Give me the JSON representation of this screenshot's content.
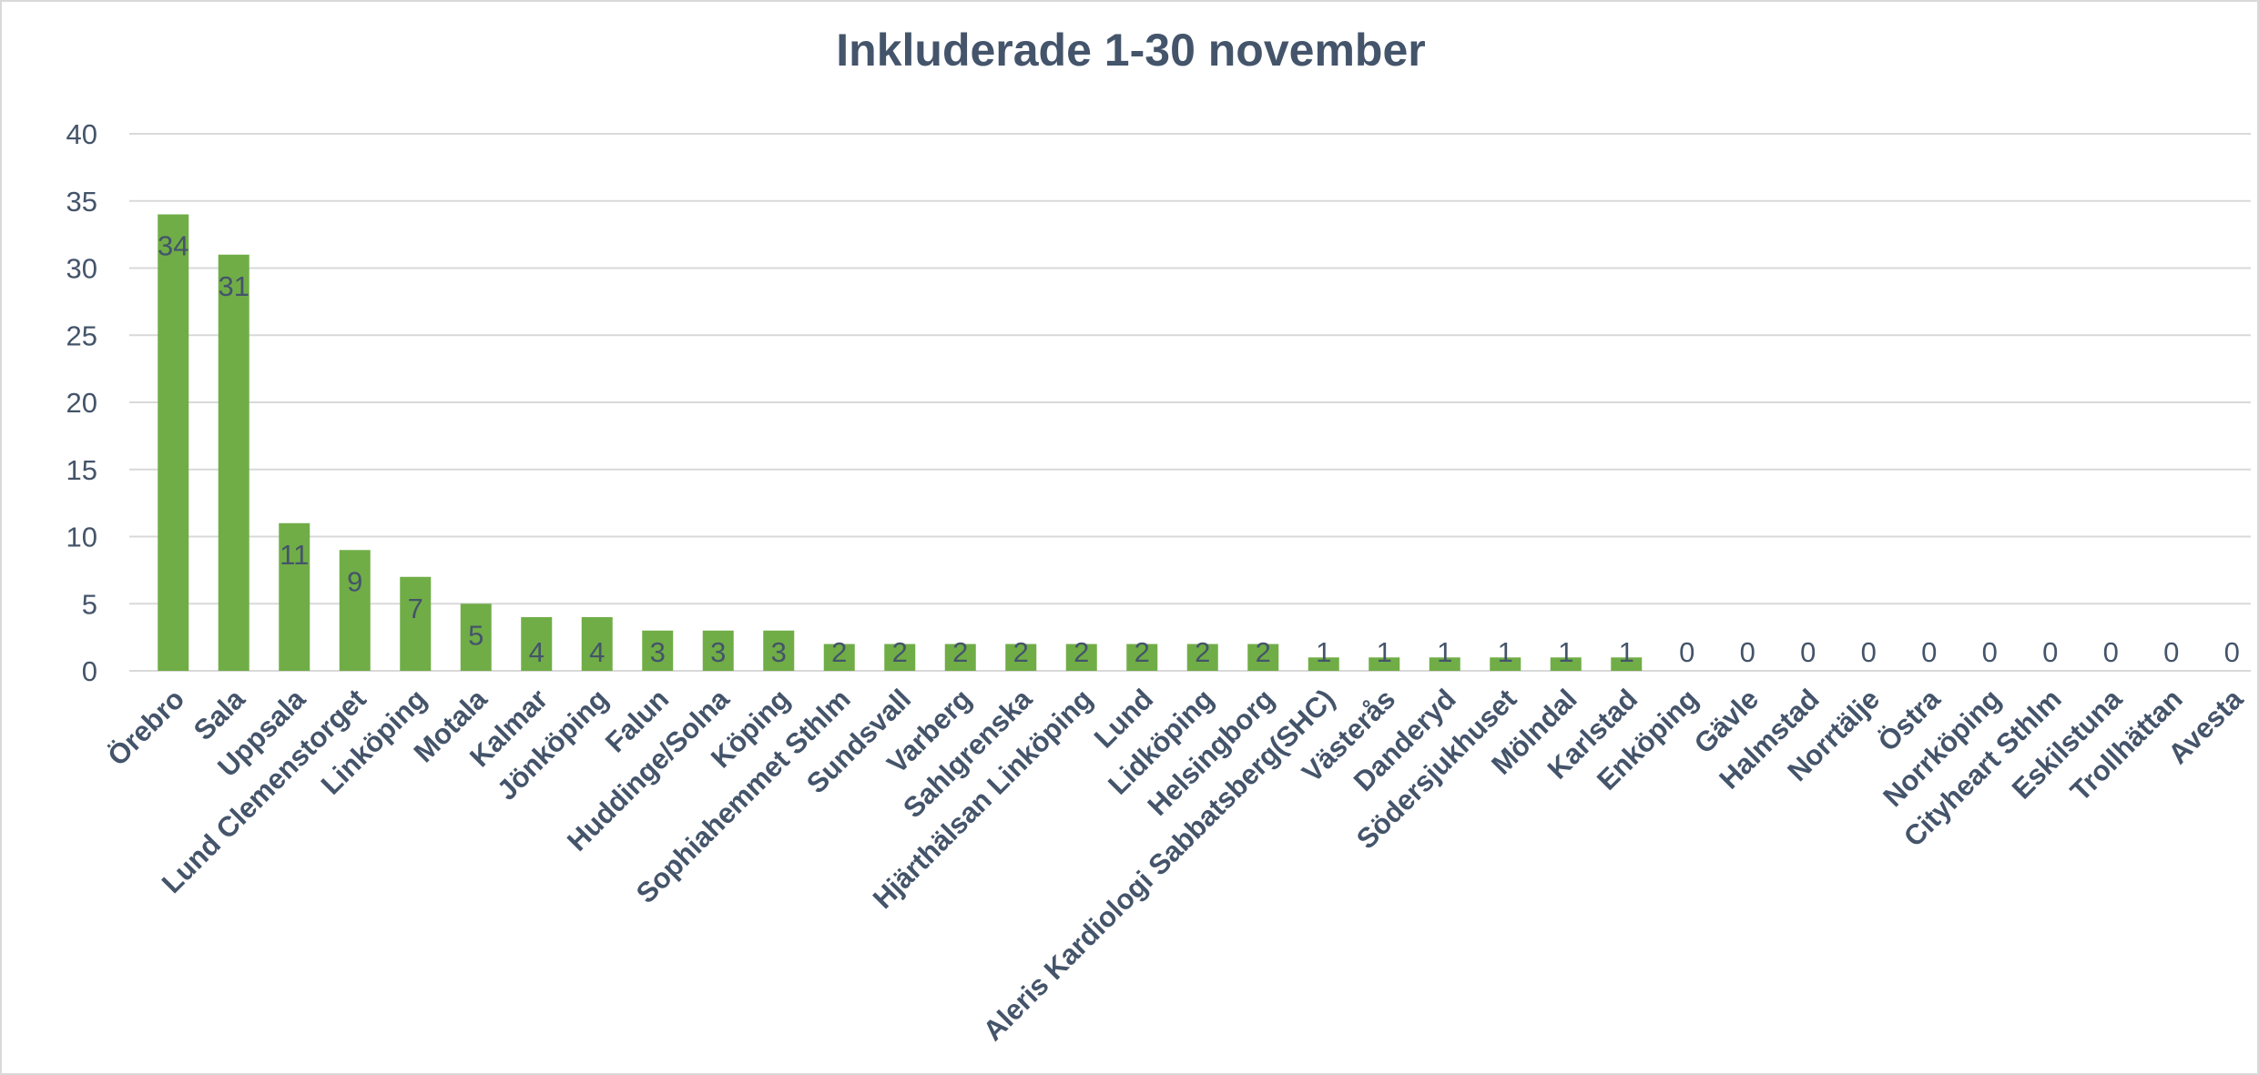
{
  "chart_data": {
    "type": "bar",
    "title": "Inkluderade 1-30 november",
    "xlabel": "",
    "ylabel": "",
    "ylim": [
      0,
      40
    ],
    "yticks": [
      0,
      5,
      10,
      15,
      20,
      25,
      30,
      35,
      40
    ],
    "grid": true,
    "legend": "none",
    "bar_color": "#70ad47",
    "text_color": "#44546a",
    "categories": [
      "Örebro",
      "Sala",
      "Uppsala",
      "Lund Clemenstorget",
      "Linköping",
      "Motala",
      "Kalmar",
      "Jönköping",
      "Falun",
      "Huddinge/Solna",
      "Köping",
      "Sophiahemmet Sthlm",
      "Sundsvall",
      "Varberg",
      "Sahlgrenska",
      "Hjärthälsan Linköping",
      "Lund",
      "Lidköping",
      "Helsingborg",
      "Aleris Kardiologi Sabbatsberg(SHC)",
      "Västerås",
      "Danderyd",
      "Södersjukhuset",
      "Mölndal",
      "Karlstad",
      "Enköping",
      "Gävle",
      "Halmstad",
      "Norrtälje",
      "Östra",
      "Norrköping",
      "Cityheart Sthlm",
      "Eskilstuna",
      "Trollhättan",
      "Avesta"
    ],
    "values": [
      34,
      31,
      11,
      9,
      7,
      5,
      4,
      4,
      3,
      3,
      3,
      2,
      2,
      2,
      2,
      2,
      2,
      2,
      2,
      1,
      1,
      1,
      1,
      1,
      1,
      0,
      0,
      0,
      0,
      0,
      0,
      0,
      0,
      0,
      0
    ]
  }
}
